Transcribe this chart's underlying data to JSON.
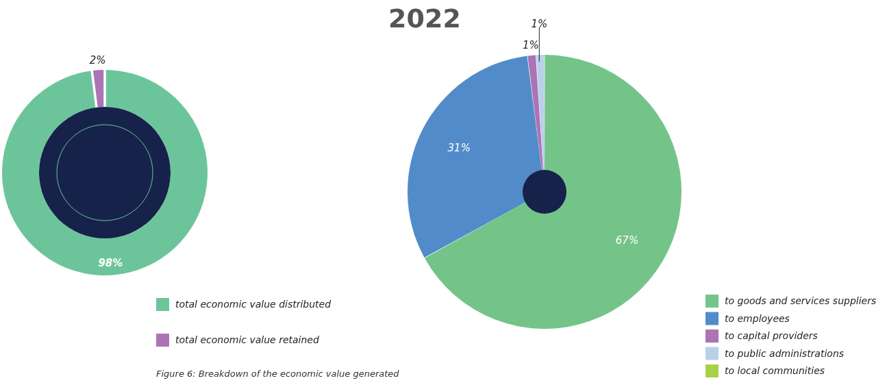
{
  "chart_data": [
    {
      "type": "donut",
      "categories": [
        "total economic value distributed",
        "total economic value retained"
      ],
      "values": [
        98,
        2
      ],
      "colors": [
        "#6cc59a",
        "#ac74b4"
      ],
      "value_labels": [
        "98%",
        "2%"
      ],
      "legend": "bottom",
      "annotations": [
        "Figure 6: Breakdown of the economic value generated"
      ]
    },
    {
      "type": "pie",
      "title": "2022",
      "categories": [
        "to goods and services suppliers",
        "to employees",
        "to capital providers",
        "to public administrations",
        "to local communities"
      ],
      "values": [
        67,
        31,
        1,
        1,
        0
      ],
      "colors": [
        "#74c48a",
        "#528bc9",
        "#ac74b4",
        "#b9d1e8",
        "#a8d14a"
      ],
      "value_labels": [
        "67%",
        "31%",
        "1%",
        "1%",
        null
      ],
      "legend": "bottom right"
    }
  ]
}
